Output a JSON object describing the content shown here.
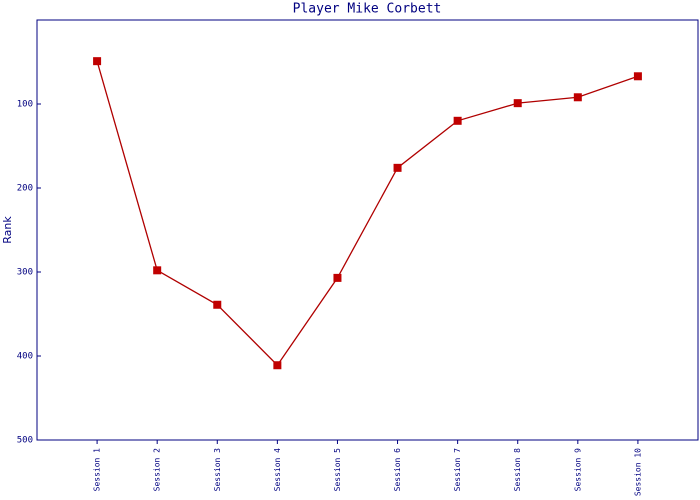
{
  "chart_data": {
    "type": "line",
    "title": "Player Mike Corbett",
    "y_label": "Rank",
    "categories": [
      "Session 1",
      "Session 2",
      "Session 3",
      "Session 4",
      "Session 5",
      "Session 6",
      "Session 7",
      "Session 8",
      "Session 9",
      "Session 10"
    ],
    "values": [
      49,
      298,
      339,
      411,
      307,
      176,
      120,
      99,
      92,
      67
    ],
    "color": "#b00000",
    "marker_color": "#c00000",
    "ylim": [
      500,
      0
    ],
    "yticks": [
      100,
      200,
      300,
      400,
      500
    ],
    "grid": false
  }
}
